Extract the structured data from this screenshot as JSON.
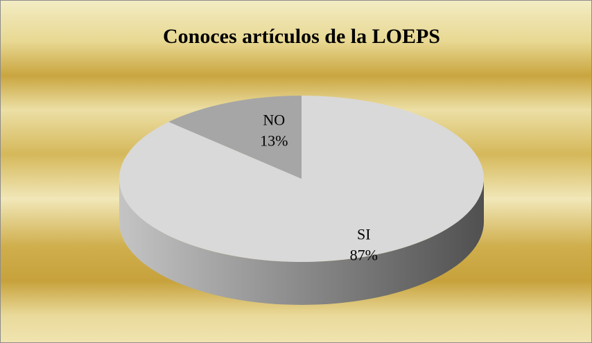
{
  "chart_data": {
    "type": "pie",
    "title": "Conoces artículos de la LOEPS",
    "categories": [
      "SI",
      "NO"
    ],
    "values": [
      87,
      13
    ],
    "value_labels": [
      "87%",
      "13%"
    ],
    "colors": [
      "#d9d9d9",
      "#a6a6a6"
    ],
    "three_d": true
  }
}
